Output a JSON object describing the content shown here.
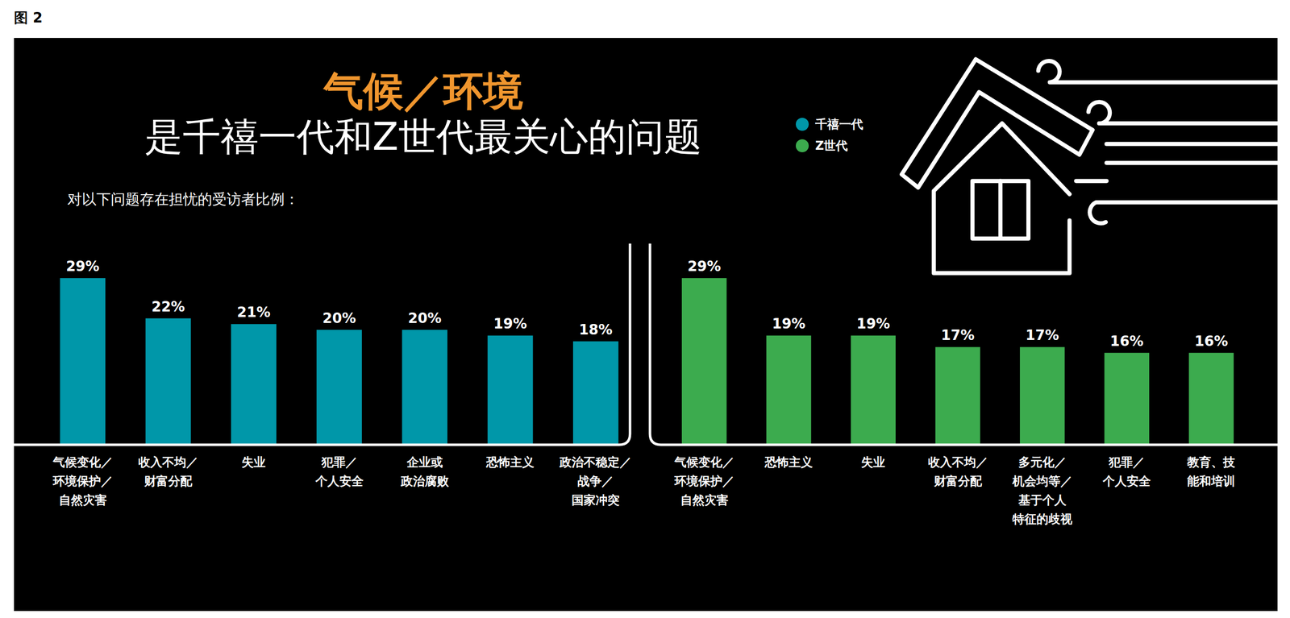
{
  "figure_label": "图 2",
  "title": [
    "气候／环境",
    "是千禧一代和Z世代最关心的问题"
  ],
  "subtitle": "对以下问题存在担忧的受访者比例：",
  "chart_data": [
    {
      "type": "bar",
      "categories": [
        "气候变化／环境保护／自然灾害",
        "收入不均／财富分配",
        "失业",
        "犯罪／个人安全",
        "企业或政治腐败",
        "恐怖主义",
        "政治不稳定／战争／国家冲突"
      ],
      "series": [
        {
          "name": "千禧一代",
          "color": "#0097a9",
          "values": [
            29,
            22,
            21,
            20,
            20,
            19,
            18
          ],
          "value_labels": [
            "29%",
            "22%",
            "21%",
            "20%",
            "20%",
            "19%",
            "18%"
          ]
        }
      ],
      "ylim": [
        0,
        35
      ],
      "yticks": [],
      "tick_labels": "x",
      "data_labels": true,
      "legend": "top-right"
    },
    {
      "type": "bar",
      "categories": [
        "气候变化／环境保护／自然灾害",
        "恐怖主义",
        "失业",
        "收入不均／财富分配",
        "多元化／机会均等／基于个人特征的歧视",
        "犯罪／个人安全",
        "教育、技能和培训"
      ],
      "series": [
        {
          "name": "Z世代",
          "color": "#3cab4e",
          "values": [
            29,
            19,
            19,
            17,
            17,
            16,
            16
          ],
          "value_labels": [
            "29%",
            "19%",
            "19%",
            "17%",
            "17%",
            "16%",
            "16%"
          ]
        }
      ],
      "ylim": [
        0,
        35
      ],
      "yticks": [],
      "tick_labels": "x",
      "data_labels": true,
      "legend": "top-right"
    }
  ]
}
